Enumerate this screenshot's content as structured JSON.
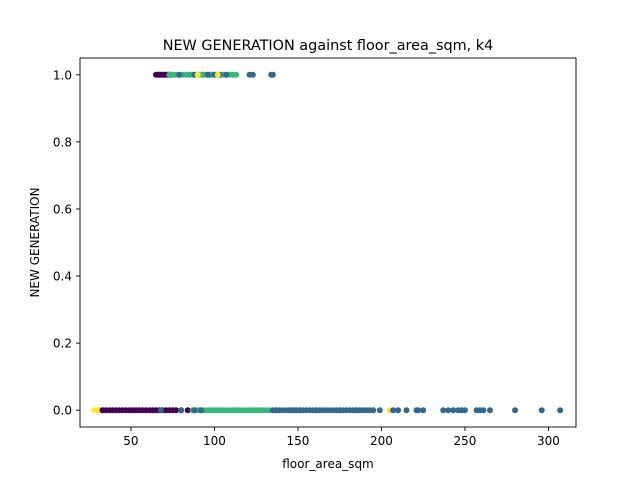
{
  "chart_data": {
    "type": "scatter",
    "title": "NEW GENERATION against floor_area_sqm, k4",
    "xlabel": "floor_area_sqm",
    "ylabel": "NEW GENERATION",
    "xlim": [
      19.5,
      316.5
    ],
    "ylim": [
      -0.05,
      1.05
    ],
    "xticks": [
      50,
      100,
      150,
      200,
      250,
      300
    ],
    "yticks": [
      0.0,
      0.2,
      0.4,
      0.6,
      0.8,
      1.0
    ],
    "xtick_labels": [
      "50",
      "100",
      "150",
      "200",
      "250",
      "300"
    ],
    "ytick_labels": [
      "0.0",
      "0.2",
      "0.4",
      "0.6",
      "0.8",
      "1.0"
    ],
    "grid": false,
    "legend": false,
    "colors": {
      "c0": "#440154",
      "c1": "#31688e",
      "c2": "#35b779",
      "c3": "#fde725"
    },
    "series": [
      {
        "color": "#fde725",
        "y": 0,
        "x": [
          28,
          30,
          31,
          32,
          33,
          34,
          195,
          205
        ]
      },
      {
        "color": "#440154",
        "y": 0,
        "x": [
          33,
          35,
          37,
          39,
          41,
          43,
          45,
          47,
          49,
          51,
          53,
          55,
          57,
          59,
          61,
          63,
          65,
          67,
          69,
          71,
          73,
          75,
          77,
          80,
          84
        ]
      },
      {
        "color": "#35b779",
        "y": 0,
        "x": [
          87,
          89,
          91,
          93,
          95,
          97,
          99,
          101,
          103,
          105,
          107,
          109,
          111,
          113,
          115,
          117,
          119,
          121,
          123,
          125,
          127,
          129,
          131,
          133,
          147
        ]
      },
      {
        "color": "#31688e",
        "y": 0,
        "x": [
          68,
          80,
          88,
          92,
          135,
          137,
          139,
          141,
          143,
          145,
          147,
          149,
          151,
          153,
          155,
          157,
          159,
          161,
          163,
          165,
          167,
          169,
          171,
          173,
          175,
          177,
          179,
          181,
          183,
          185,
          187,
          189,
          191,
          193,
          195,
          199,
          207,
          210,
          215,
          221,
          222,
          225,
          237,
          240,
          243,
          246,
          248,
          250,
          257,
          259,
          261,
          265,
          280,
          296,
          307
        ]
      },
      {
        "color": "#440154",
        "y": 1,
        "x": [
          65,
          66,
          67,
          68,
          69,
          70,
          71,
          72,
          73,
          74,
          85,
          93,
          98
        ]
      },
      {
        "color": "#35b779",
        "y": 1,
        "x": [
          73,
          75,
          77,
          79,
          81,
          83,
          85,
          87,
          89,
          91,
          93,
          95,
          97,
          99,
          101,
          103,
          105,
          107,
          109,
          111,
          113
        ]
      },
      {
        "color": "#31688e",
        "y": 1,
        "x": [
          79,
          88,
          96,
          100,
          103,
          107,
          121,
          123,
          134,
          135
        ]
      },
      {
        "color": "#fde725",
        "y": 1,
        "x": [
          90,
          102
        ]
      }
    ]
  }
}
